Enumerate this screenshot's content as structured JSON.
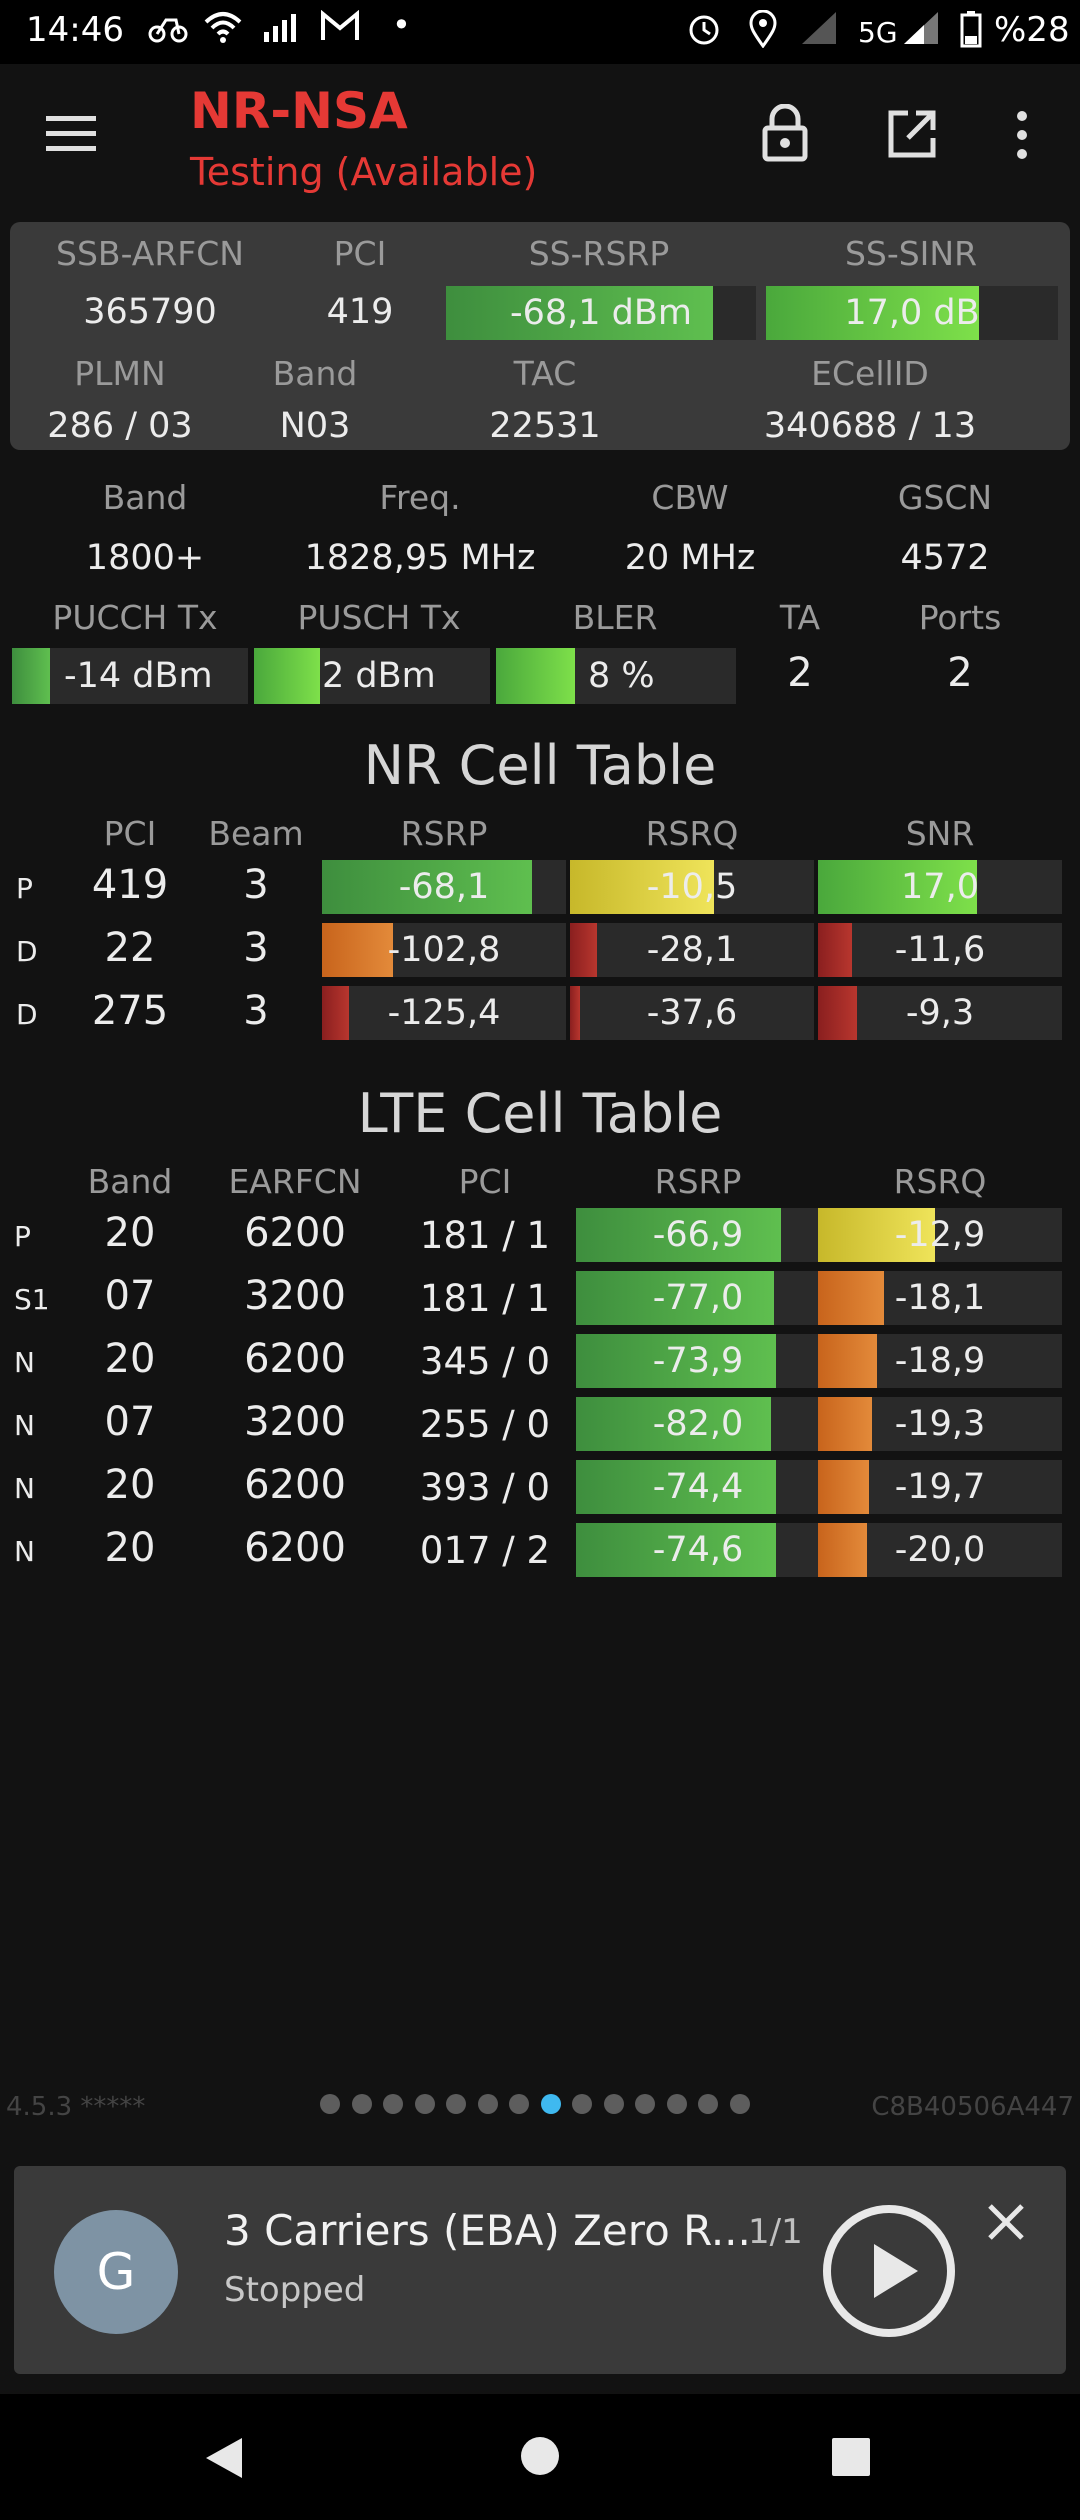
{
  "status_bar": {
    "time": "14:46",
    "network": "5G",
    "battery": "%28",
    "icons": [
      "bike-icon",
      "wifi-icon",
      "signal-icon",
      "gmail-icon",
      "dot-icon",
      "alarm-icon",
      "location-icon",
      "signal-bars-icon",
      "5g-signal-icon",
      "battery-icon"
    ]
  },
  "app_bar": {
    "title": "NR-NSA",
    "subtitle": "Testing (Available)",
    "accent_color": "#e53935",
    "icons": [
      "menu-icon",
      "lock-icon",
      "open-external-icon",
      "more-vert-icon"
    ]
  },
  "top_panel": {
    "headers": [
      "SSB-ARFCN",
      "PCI",
      "SS-RSRP",
      "SS-SINR"
    ],
    "ssb_arfcn": "365790",
    "pci": "419",
    "ss_rsrp": {
      "label": "-68,1 dBm",
      "level": 0.86
    },
    "ss_sinr": {
      "label": "17,0 dB",
      "level": 0.73
    },
    "headers2": [
      "PLMN",
      "Band",
      "TAC",
      "ECellID"
    ],
    "plmn": "286 / 03",
    "band": "N03",
    "tac": "22531",
    "ecellid": "340688 / 13"
  },
  "info": {
    "headers": [
      "Band",
      "Freq.",
      "CBW",
      "GSCN"
    ],
    "band": "1800+",
    "freq": "1828,95 MHz",
    "cbw": "20 MHz",
    "gscn": "4572",
    "headers2": [
      "PUCCH Tx",
      "PUSCH Tx",
      "BLER",
      "TA",
      "Ports"
    ],
    "pucch": {
      "label": "-14 dBm",
      "level": 0.16
    },
    "pusch": {
      "label": "2 dBm",
      "level": 0.28
    },
    "bler": {
      "label": "8 %",
      "level": 0.33
    },
    "ta": "2",
    "ports": "2"
  },
  "nr_table": {
    "title": "NR Cell Table",
    "headers": [
      "PCI",
      "Beam",
      "RSRP",
      "RSRQ",
      "SNR"
    ],
    "rows": [
      {
        "tag": "P",
        "pci": "419",
        "beam": "3",
        "rsrp": "-68,1",
        "rsrp_level": 0.86,
        "rsrq": "-10,5",
        "rsrq_level": 0.59,
        "snr": "17,0",
        "snr_level": 0.65
      },
      {
        "tag": "D",
        "pci": "22",
        "beam": "3",
        "rsrp": "-102,8",
        "rsrp_level": 0.29,
        "rsrq": "-28,1",
        "rsrq_level": 0.11,
        "snr": "-11,6",
        "snr_level": 0.14
      },
      {
        "tag": "D",
        "pci": "275",
        "beam": "3",
        "rsrp": "-125,4",
        "rsrp_level": 0.11,
        "rsrq": "-37,6",
        "rsrq_level": 0.04,
        "snr": "-9,3",
        "snr_level": 0.16
      }
    ]
  },
  "lte_table": {
    "title": "LTE Cell Table",
    "headers": [
      "Band",
      "EARFCN",
      "PCI",
      "RSRP",
      "RSRQ"
    ],
    "rows": [
      {
        "tag": "P",
        "band": "20",
        "earfcn": "6200",
        "pci": "181 / 1",
        "rsrp": "-66,9",
        "rsrp_level": 0.84,
        "rsrq": "-12,9",
        "rsrq_level": 0.48
      },
      {
        "tag": "S1",
        "band": "07",
        "earfcn": "3200",
        "pci": "181 / 1",
        "rsrp": "-77,0",
        "rsrp_level": 0.81,
        "rsrq": "-18,1",
        "rsrq_level": 0.27
      },
      {
        "tag": "N",
        "band": "20",
        "earfcn": "6200",
        "pci": "345 / 0",
        "rsrp": "-73,9",
        "rsrp_level": 0.82,
        "rsrq": "-18,9",
        "rsrq_level": 0.24
      },
      {
        "tag": "N",
        "band": "07",
        "earfcn": "3200",
        "pci": "255 / 0",
        "rsrp": "-82,0",
        "rsrp_level": 0.8,
        "rsrq": "-19,3",
        "rsrq_level": 0.22
      },
      {
        "tag": "N",
        "band": "20",
        "earfcn": "6200",
        "pci": "393 / 0",
        "rsrp": "-74,4",
        "rsrp_level": 0.82,
        "rsrq": "-19,7",
        "rsrq_level": 0.21
      },
      {
        "tag": "N",
        "band": "20",
        "earfcn": "6200",
        "pci": "017 / 2",
        "rsrp": "-74,6",
        "rsrp_level": 0.82,
        "rsrq": "-20,0",
        "rsrq_level": 0.2
      }
    ]
  },
  "footer": {
    "version": "4.5.3 *****",
    "device_id": "C8B40506A447",
    "page_count": 14,
    "active_page": 8
  },
  "player": {
    "avatar_letter": "G",
    "title": "3 Carriers (EBA) Zero R...",
    "counter": "1/1",
    "status": "Stopped",
    "icons": [
      "play-icon",
      "close-icon"
    ]
  },
  "nav_bar": {
    "icons": [
      "back-icon",
      "home-icon",
      "recents-icon"
    ]
  }
}
